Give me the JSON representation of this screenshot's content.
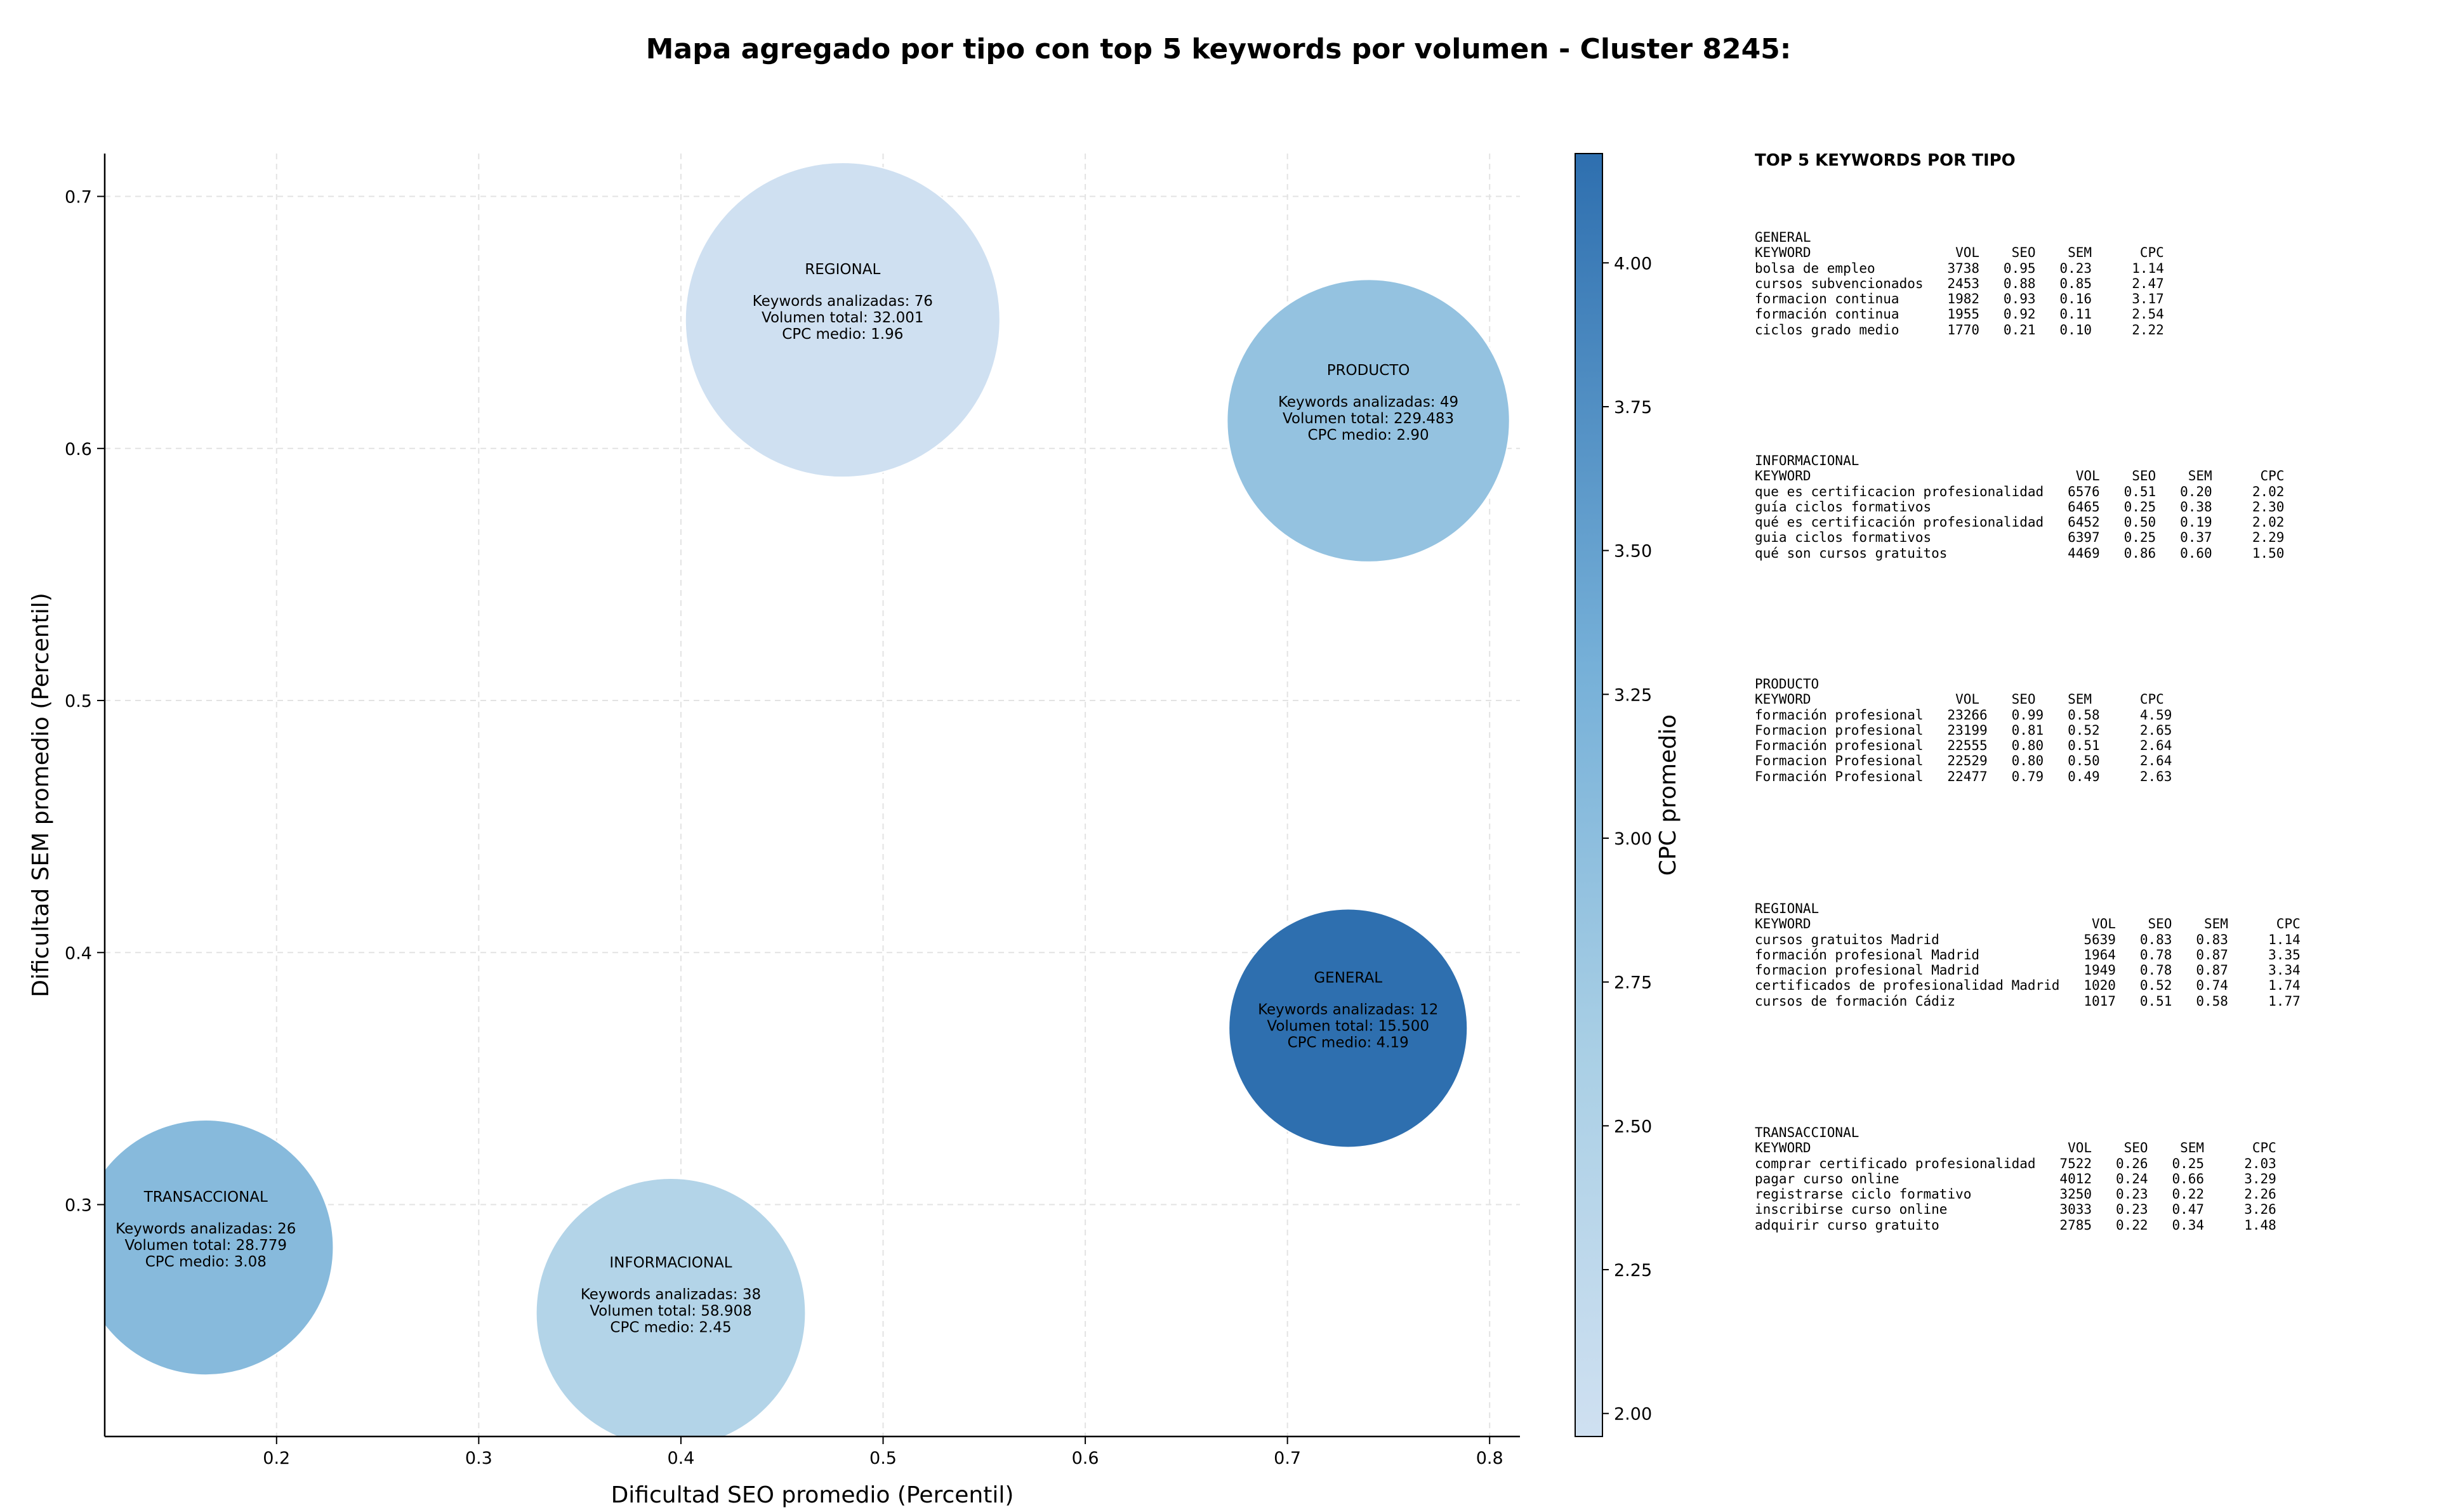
{
  "chart_data": {
    "type": "scatter",
    "title": "Mapa agregado por tipo con top 5 keywords por volumen - Cluster 8245:",
    "xlabel": "Dificultad SEO promedio (Percentil)",
    "ylabel": "Dificultad SEM promedio (Percentil)",
    "xlim": [
      0.115,
      0.815
    ],
    "ylim": [
      0.208,
      0.717
    ],
    "xticks": [
      "0.2",
      "0.3",
      "0.4",
      "0.5",
      "0.6",
      "0.7",
      "0.8"
    ],
    "yticks": [
      "0.3",
      "0.4",
      "0.5",
      "0.6",
      "0.7"
    ],
    "grid": true,
    "colorbar": {
      "label": "CPC promedio",
      "min": 1.96,
      "max": 4.19,
      "ticks": [
        "2.00",
        "2.25",
        "2.50",
        "2.75",
        "3.00",
        "3.25",
        "3.50",
        "3.75",
        "4.00"
      ]
    },
    "points": [
      {
        "tipo": "REGIONAL",
        "seo": 0.48,
        "sem": 0.651,
        "keywords": 76,
        "volumen": "32.001",
        "cpc": 1.96,
        "line1": "Keywords analizadas: 76",
        "line2": "Volumen total: 32.001",
        "line3": "CPC medio: 1.96"
      },
      {
        "tipo": "PRODUCTO",
        "seo": 0.74,
        "sem": 0.611,
        "keywords": 49,
        "volumen": "229.483",
        "cpc": 2.9,
        "line1": "Keywords analizadas: 49",
        "line2": "Volumen total: 229.483",
        "line3": "CPC medio: 2.90"
      },
      {
        "tipo": "GENERAL",
        "seo": 0.73,
        "sem": 0.37,
        "keywords": 12,
        "volumen": "15.500",
        "cpc": 4.19,
        "line1": "Keywords analizadas: 12",
        "line2": "Volumen total: 15.500",
        "line3": "CPC medio: 4.19"
      },
      {
        "tipo": "TRANSACCIONAL",
        "seo": 0.165,
        "sem": 0.283,
        "keywords": 26,
        "volumen": "28.779",
        "cpc": 3.08,
        "line1": "Keywords analizadas: 26",
        "line2": "Volumen total: 28.779",
        "line3": "CPC medio: 3.08"
      },
      {
        "tipo": "INFORMACIONAL",
        "seo": 0.395,
        "sem": 0.257,
        "keywords": 38,
        "volumen": "58.908",
        "cpc": 2.45,
        "line1": "Keywords analizadas: 38",
        "line2": "Volumen total: 58.908",
        "line3": "CPC medio: 2.45"
      }
    ]
  },
  "panel": {
    "title": "TOP 5 KEYWORDS POR TIPO",
    "blocks": [
      {
        "lines": [
          "GENERAL",
          "KEYWORD                  VOL    SEO    SEM      CPC",
          "bolsa de empleo         3738   0.95   0.23     1.14",
          "cursos subvencionados   2453   0.88   0.85     2.47",
          "formacion continua      1982   0.93   0.16     3.17",
          "formación continua      1955   0.92   0.11     2.54",
          "ciclos grado medio      1770   0.21   0.10     2.22"
        ]
      },
      {
        "lines": [
          "INFORMACIONAL",
          "KEYWORD                                 VOL    SEO    SEM      CPC",
          "que es certificacion profesionalidad   6576   0.51   0.20     2.02",
          "guía ciclos formativos                 6465   0.25   0.38     2.30",
          "qué es certificación profesionalidad   6452   0.50   0.19     2.02",
          "guia ciclos formativos                 6397   0.25   0.37     2.29",
          "qué son cursos gratuitos               4469   0.86   0.60     1.50"
        ]
      },
      {
        "lines": [
          "PRODUCTO",
          "KEYWORD                  VOL    SEO    SEM      CPC",
          "formación profesional   23266   0.99   0.58     4.59",
          "Formacion profesional   23199   0.81   0.52     2.65",
          "Formación profesional   22555   0.80   0.51     2.64",
          "Formacion Profesional   22529   0.80   0.50     2.64",
          "Formación Profesional   22477   0.79   0.49     2.63"
        ]
      },
      {
        "lines": [
          "REGIONAL",
          "KEYWORD                                   VOL    SEO    SEM      CPC",
          "cursos gratuitos Madrid                  5639   0.83   0.83     1.14",
          "formación profesional Madrid             1964   0.78   0.87     3.35",
          "formacion profesional Madrid             1949   0.78   0.87     3.34",
          "certificados de profesionalidad Madrid   1020   0.52   0.74     1.74",
          "cursos de formación Cádiz                1017   0.51   0.58     1.77"
        ]
      },
      {
        "lines": [
          "TRANSACCIONAL",
          "KEYWORD                                VOL    SEO    SEM      CPC",
          "comprar certificado profesionalidad   7522   0.26   0.25     2.03",
          "pagar curso online                    4012   0.24   0.66     3.29",
          "registrarse ciclo formativo           3250   0.23   0.22     2.26",
          "inscribirse curso online              3033   0.23   0.47     3.26",
          "adquirir curso gratuito               2785   0.22   0.34     1.48"
        ]
      }
    ]
  }
}
